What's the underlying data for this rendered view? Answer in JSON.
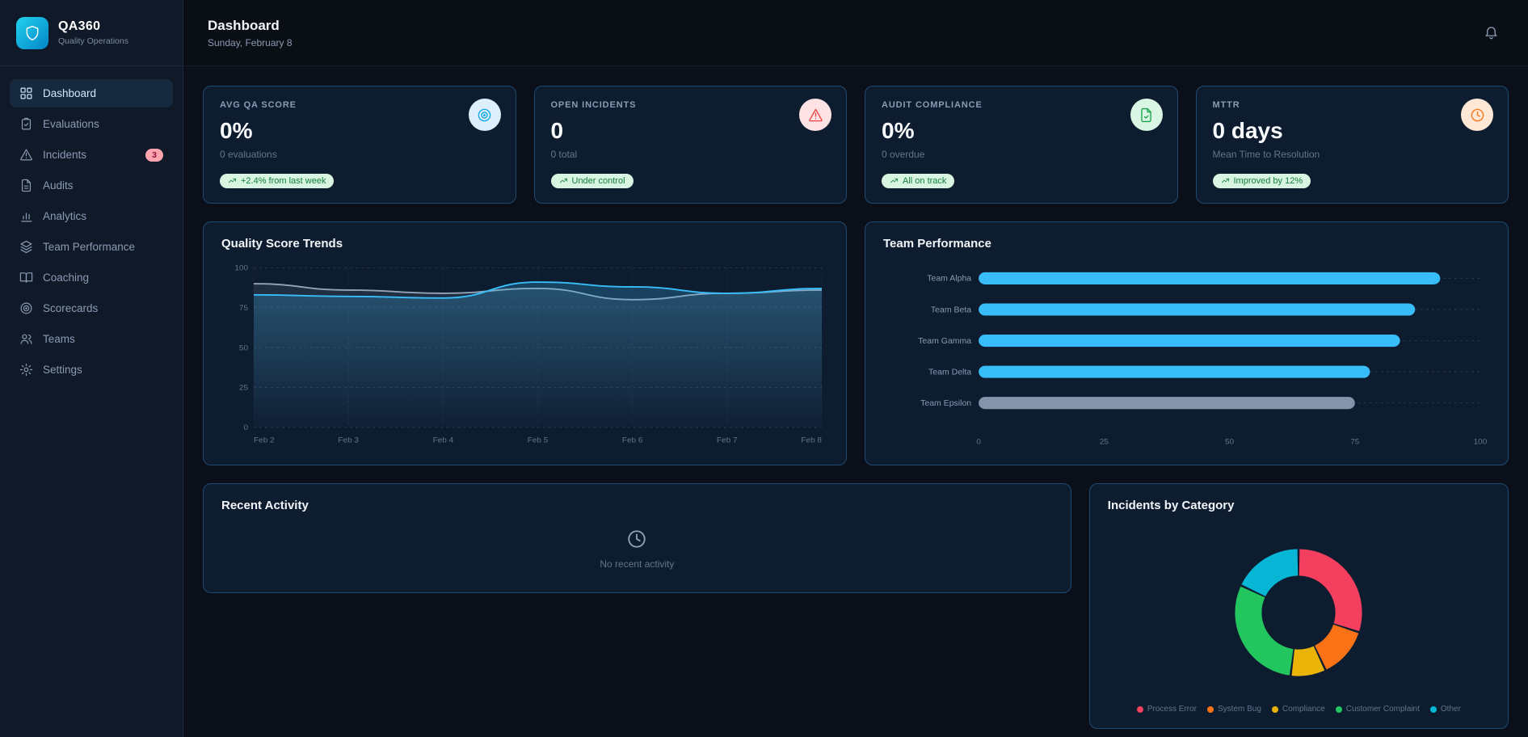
{
  "app": {
    "name": "QA360",
    "tagline": "Quality Operations",
    "logo_icon": "shield"
  },
  "sidebar": {
    "items": [
      {
        "label": "Dashboard",
        "icon": "grid",
        "active": true
      },
      {
        "label": "Evaluations",
        "icon": "clipboard"
      },
      {
        "label": "Incidents",
        "icon": "warning",
        "badge": "3"
      },
      {
        "label": "Audits",
        "icon": "doc"
      },
      {
        "label": "Analytics",
        "icon": "chart"
      },
      {
        "label": "Team Performance",
        "icon": "layers"
      },
      {
        "label": "Coaching",
        "icon": "book"
      },
      {
        "label": "Scorecards",
        "icon": "target"
      },
      {
        "label": "Teams",
        "icon": "users"
      },
      {
        "label": "Settings",
        "icon": "gear"
      }
    ]
  },
  "header": {
    "title": "Dashboard",
    "date": "Sunday, February 8",
    "bell_icon": "bell"
  },
  "kpis": [
    {
      "label": "AVG QA SCORE",
      "value": "0%",
      "sub": "0 evaluations",
      "badge": "+2.4% from last week",
      "badge_icon": "trend-up",
      "icon": "target",
      "accent": "blue"
    },
    {
      "label": "OPEN INCIDENTS",
      "value": "0",
      "sub": "0 total",
      "badge": "Under control",
      "badge_icon": "trend-up",
      "icon": "warning",
      "accent": "red"
    },
    {
      "label": "AUDIT COMPLIANCE",
      "value": "0%",
      "sub": "0 overdue",
      "badge": "All on track",
      "badge_icon": "trend-up",
      "icon": "doc-check",
      "accent": "green"
    },
    {
      "label": "MTTR",
      "value": "0 days",
      "sub": "Mean Time to Resolution",
      "badge": "Improved by 12%",
      "badge_icon": "trend-up",
      "icon": "clock",
      "accent": "orange"
    }
  ],
  "chart_data": [
    {
      "type": "line",
      "title": "Quality Score Trends",
      "x": [
        "Feb 2",
        "Feb 3",
        "Feb 4",
        "Feb 5",
        "Feb 6",
        "Feb 7",
        "Feb 8"
      ],
      "series": [
        {
          "name": "series-a",
          "color": "#94a3b8",
          "values": [
            90,
            86,
            84,
            87,
            80,
            84,
            86
          ]
        },
        {
          "name": "series-b",
          "color": "#38bdf8",
          "values": [
            83,
            82,
            81,
            91,
            88,
            84,
            87
          ]
        }
      ],
      "ylim": [
        0,
        100
      ],
      "yticks": [
        0,
        25,
        50,
        75,
        100
      ],
      "grid": "dashed"
    },
    {
      "type": "bar",
      "orientation": "horizontal",
      "title": "Team Performance",
      "categories": [
        "Team Alpha",
        "Team Beta",
        "Team Gamma",
        "Team Delta",
        "Team Epsilon"
      ],
      "values": [
        92,
        87,
        84,
        78,
        75
      ],
      "colors": [
        "#38bdf8",
        "#38bdf8",
        "#38bdf8",
        "#38bdf8",
        "#8494ab"
      ],
      "xlim": [
        0,
        100
      ],
      "xticks": [
        0,
        25,
        50,
        75,
        100
      ],
      "grid": "dashed"
    },
    {
      "type": "pie",
      "subtype": "donut",
      "title": "Incidents by Category",
      "segments": [
        {
          "label": "Process Error",
          "value": 30,
          "color": "#f43f5e"
        },
        {
          "label": "System Bug",
          "value": 13,
          "color": "#f97316"
        },
        {
          "label": "Compliance",
          "value": 9,
          "color": "#eab308"
        },
        {
          "label": "Customer Complaint",
          "value": 30,
          "color": "#22c55e"
        },
        {
          "label": "Other",
          "value": 18,
          "color": "#06b6d4"
        }
      ],
      "legend_position": "bottom"
    }
  ],
  "recent_activity": {
    "title": "Recent Activity",
    "empty_text": "No recent activity",
    "empty_icon": "clock"
  }
}
